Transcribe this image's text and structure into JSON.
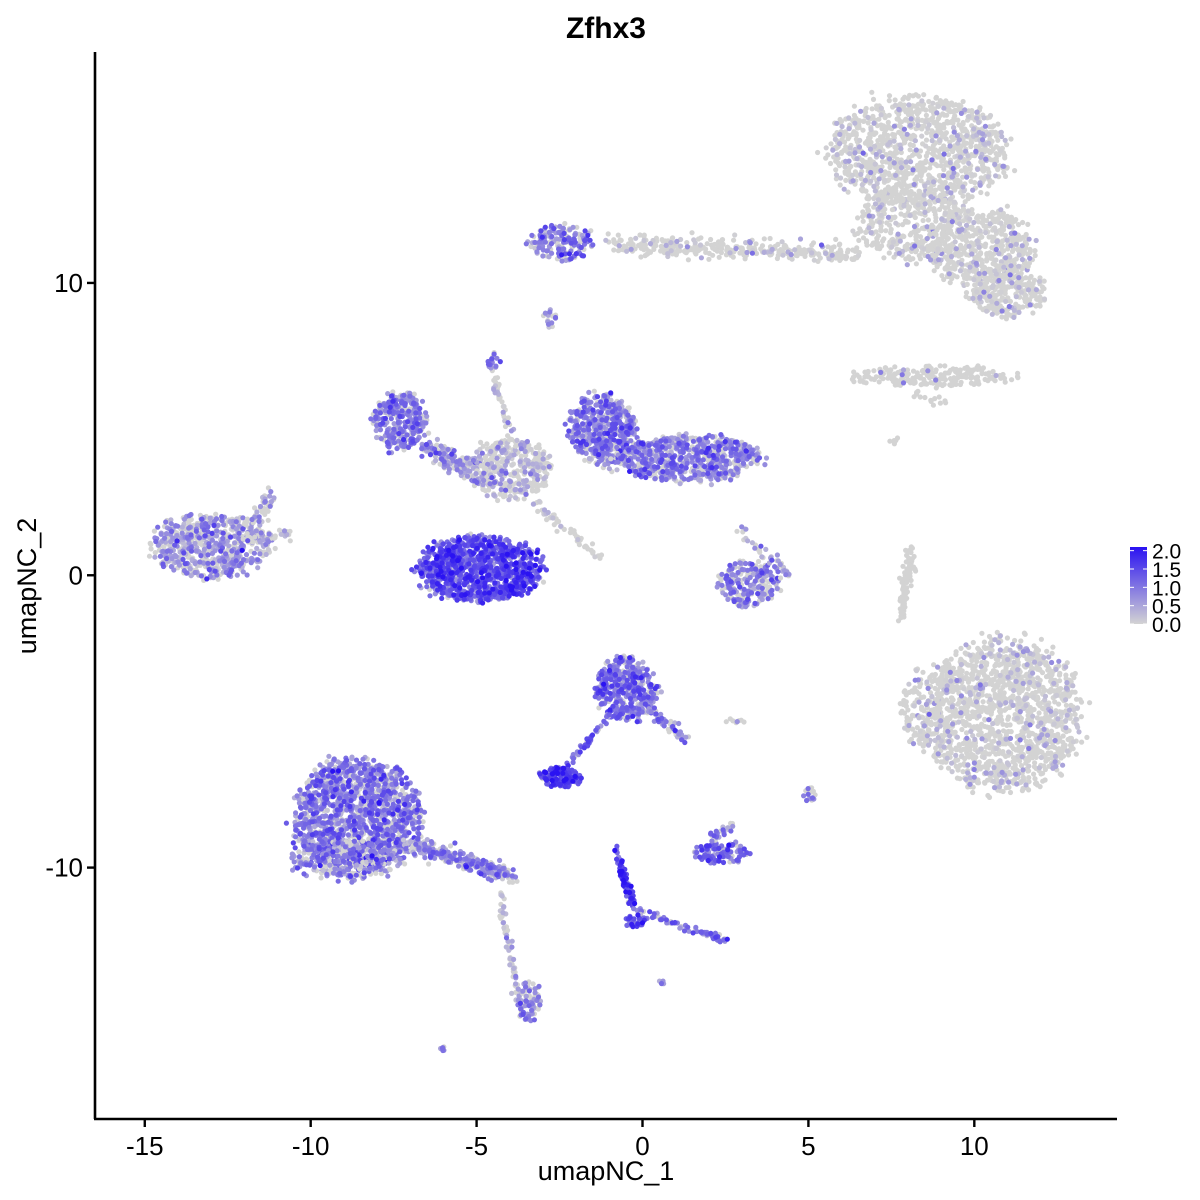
{
  "chart_data": {
    "type": "scatter",
    "title": "Zfhx3",
    "xlabel": "umapNC_1",
    "ylabel": "umapNC_2",
    "xlim": [
      -16.5,
      14.3
    ],
    "ylim": [
      -18.6,
      17.9
    ],
    "x_ticks": [
      -15,
      -10,
      -5,
      0,
      5,
      10
    ],
    "y_ticks": [
      -10,
      0,
      10
    ],
    "x_tick_labels": [
      "-15",
      "-10",
      "-5",
      "0",
      "5",
      "10"
    ],
    "y_tick_labels": [
      "-10",
      "0",
      "10"
    ],
    "grid": false,
    "point_colors": {
      "low": "#d3d3d3",
      "high": "#2a12f2"
    },
    "legend": {
      "position": "right",
      "labels": [
        "2.0",
        "1.5",
        "1.0",
        "0.5",
        "0.0"
      ],
      "values": [
        2.0,
        1.5,
        1.0,
        0.5,
        0.0
      ],
      "range": [
        0.0,
        2.1
      ]
    },
    "clusters": [
      {
        "name": "top-right-upper-lobe",
        "type": "ellipse",
        "cx": 8.3,
        "cy": 14.5,
        "rx": 2.7,
        "ry": 1.9,
        "n": 1100,
        "expr": 0.02
      },
      {
        "name": "top-right-stalk",
        "type": "ellipse",
        "cx": 8.1,
        "cy": 12.0,
        "rx": 1.7,
        "ry": 1.2,
        "n": 380,
        "expr": 0.02
      },
      {
        "name": "top-right-right-arm",
        "type": "ellipse",
        "cx": 10.2,
        "cy": 11.2,
        "rx": 1.6,
        "ry": 1.3,
        "n": 480,
        "expr": 0.03
      },
      {
        "name": "top-right-lower-arm",
        "type": "ellipse",
        "cx": 11.0,
        "cy": 9.7,
        "rx": 1.2,
        "ry": 0.9,
        "n": 280,
        "expr": 0.02
      },
      {
        "name": "top-bridge",
        "type": "line",
        "x1": -1.0,
        "y1": 11.3,
        "x2": 6.5,
        "y2": 11.0,
        "spread": 0.35,
        "n": 320,
        "expr": 0.03
      },
      {
        "name": "top-left-purple",
        "type": "ellipse",
        "cx": -2.4,
        "cy": 11.4,
        "rx": 1.0,
        "ry": 0.6,
        "n": 170,
        "expr": 0.9
      },
      {
        "name": "small-top-blip",
        "type": "ellipse",
        "cx": -2.8,
        "cy": 8.8,
        "rx": 0.2,
        "ry": 0.4,
        "n": 16,
        "expr": 0.6
      },
      {
        "name": "right-thin-cluster",
        "type": "ellipse",
        "cx": 8.8,
        "cy": 6.8,
        "rx": 2.4,
        "ry": 0.35,
        "n": 220,
        "expr": 0.0
      },
      {
        "name": "right-thin-tail",
        "type": "line",
        "x1": 8.2,
        "y1": 6.2,
        "x2": 9.2,
        "y2": 5.8,
        "spread": 0.15,
        "n": 14,
        "expr": 0.0
      },
      {
        "name": "left-cluster",
        "type": "ellipse",
        "cx": -13.0,
        "cy": 1.0,
        "rx": 1.8,
        "ry": 1.1,
        "n": 620,
        "expr": 0.65
      },
      {
        "name": "left-cluster-wing",
        "type": "line",
        "x1": -12.0,
        "y1": 1.6,
        "x2": -11.2,
        "y2": 2.7,
        "spread": 0.25,
        "n": 50,
        "expr": 0.5
      },
      {
        "name": "left-cluster-tip",
        "type": "line",
        "x1": -12.0,
        "y1": 1.2,
        "x2": -10.6,
        "y2": 1.4,
        "spread": 0.2,
        "n": 40,
        "expr": 0.5
      },
      {
        "name": "center-round-lobe",
        "type": "ellipse",
        "cx": -4.9,
        "cy": 0.2,
        "rx": 1.8,
        "ry": 1.1,
        "n": 1050,
        "expr": 1.35
      },
      {
        "name": "center-left-arm",
        "type": "ellipse",
        "cx": -7.3,
        "cy": 5.3,
        "rx": 0.8,
        "ry": 1.0,
        "n": 300,
        "expr": 0.9
      },
      {
        "name": "center-hub",
        "type": "ellipse",
        "cx": -4.0,
        "cy": 3.6,
        "rx": 1.3,
        "ry": 1.0,
        "n": 380,
        "expr": 0.35
      },
      {
        "name": "center-arm-connector",
        "type": "line",
        "x1": -6.6,
        "y1": 4.5,
        "x2": -4.6,
        "y2": 3.2,
        "spread": 0.35,
        "n": 170,
        "expr": 0.7
      },
      {
        "name": "center-spike",
        "type": "line",
        "x1": -4.6,
        "y1": 7.3,
        "x2": -3.9,
        "y2": 4.3,
        "spread": 0.12,
        "n": 40,
        "expr": 0.3
      },
      {
        "name": "center-right-arm",
        "type": "ellipse",
        "cx": -1.2,
        "cy": 5.0,
        "rx": 1.0,
        "ry": 1.2,
        "n": 520,
        "expr": 0.9
      },
      {
        "name": "center-right-body",
        "type": "ellipse",
        "cx": 1.4,
        "cy": 4.0,
        "rx": 2.1,
        "ry": 0.8,
        "n": 640,
        "expr": 0.85
      },
      {
        "name": "center-lower-branch",
        "type": "line",
        "x1": -3.3,
        "y1": 2.5,
        "x2": -1.2,
        "y2": 0.6,
        "spread": 0.15,
        "n": 55,
        "expr": 0.15
      },
      {
        "name": "center-top-blip",
        "type": "ellipse",
        "cx": -4.5,
        "cy": 7.3,
        "rx": 0.2,
        "ry": 0.3,
        "n": 18,
        "expr": 0.9
      },
      {
        "name": "mid-right-small",
        "type": "ellipse",
        "cx": 3.2,
        "cy": -0.3,
        "rx": 0.9,
        "ry": 0.8,
        "n": 210,
        "expr": 0.85
      },
      {
        "name": "mid-right-extension",
        "type": "line",
        "x1": 2.9,
        "y1": 1.6,
        "x2": 4.4,
        "y2": 0.0,
        "spread": 0.2,
        "n": 40,
        "expr": 0.6
      },
      {
        "name": "big-right-cluster",
        "type": "ellipse",
        "cx": 10.8,
        "cy": -4.8,
        "rx": 2.4,
        "ry": 2.6,
        "n": 1500,
        "expr": 0.03
      },
      {
        "name": "big-right-left-bulge",
        "type": "ellipse",
        "cx": 8.4,
        "cy": -4.6,
        "rx": 0.6,
        "ry": 1.3,
        "n": 110,
        "expr": 0.03
      },
      {
        "name": "vertical-thin-stalk",
        "type": "line",
        "x1": 8.1,
        "y1": 1.0,
        "x2": 7.8,
        "y2": -1.5,
        "spread": 0.15,
        "n": 90,
        "expr": 0.0
      },
      {
        "name": "bottom-left-main",
        "type": "ellipse",
        "cx": -8.6,
        "cy": -8.3,
        "rx": 1.9,
        "ry": 2.0,
        "n": 1500,
        "expr": 0.9
      },
      {
        "name": "bottom-left-lower",
        "type": "ellipse",
        "cx": -9.0,
        "cy": -9.7,
        "rx": 1.7,
        "ry": 0.7,
        "n": 260,
        "expr": 0.85
      },
      {
        "name": "bottom-left-tail",
        "type": "line",
        "x1": -7.0,
        "y1": -9.2,
        "x2": -4.0,
        "y2": -10.3,
        "spread": 0.3,
        "n": 280,
        "expr": 0.75
      },
      {
        "name": "bottom-left-strand",
        "type": "line",
        "x1": -4.3,
        "y1": -10.8,
        "x2": -3.7,
        "y2": -14.8,
        "spread": 0.12,
        "n": 70,
        "expr": 0.35
      },
      {
        "name": "bottom-left-blob",
        "type": "ellipse",
        "cx": -3.4,
        "cy": -14.6,
        "rx": 0.35,
        "ry": 0.7,
        "n": 80,
        "expr": 0.75
      },
      {
        "name": "center-lower-upper",
        "type": "ellipse",
        "cx": -0.5,
        "cy": -3.9,
        "rx": 0.9,
        "ry": 1.1,
        "n": 420,
        "expr": 1.0
      },
      {
        "name": "center-lower-tail",
        "type": "line",
        "x1": 0.3,
        "y1": -4.6,
        "x2": 1.2,
        "y2": -5.6,
        "spread": 0.25,
        "n": 50,
        "expr": 0.9
      },
      {
        "name": "center-lower-connector",
        "type": "line",
        "x1": -1.0,
        "y1": -4.8,
        "x2": -2.3,
        "y2": -6.6,
        "spread": 0.1,
        "n": 45,
        "expr": 1.1
      },
      {
        "name": "center-lower-blob",
        "type": "ellipse",
        "cx": -2.5,
        "cy": -6.9,
        "rx": 0.6,
        "ry": 0.35,
        "n": 130,
        "expr": 1.5
      },
      {
        "name": "blue-line-upper",
        "type": "line",
        "x1": -0.8,
        "y1": -9.3,
        "x2": -0.3,
        "y2": -11.3,
        "spread": 0.12,
        "n": 70,
        "expr": 1.6
      },
      {
        "name": "blue-line-lower",
        "type": "line",
        "x1": -0.3,
        "y1": -11.4,
        "x2": 2.5,
        "y2": -12.5,
        "spread": 0.12,
        "n": 70,
        "expr": 1.0
      },
      {
        "name": "blue-line-knot",
        "type": "ellipse",
        "cx": -0.2,
        "cy": -11.8,
        "rx": 0.3,
        "ry": 0.3,
        "n": 30,
        "expr": 1.3
      },
      {
        "name": "small-purple-right",
        "type": "ellipse",
        "cx": 2.4,
        "cy": -9.5,
        "rx": 0.8,
        "ry": 0.35,
        "n": 110,
        "expr": 1.1
      },
      {
        "name": "small-purple-right-top",
        "type": "line",
        "x1": 2.1,
        "y1": -9.0,
        "x2": 2.7,
        "y2": -8.5,
        "spread": 0.2,
        "n": 25,
        "expr": 0.9
      },
      {
        "name": "tiny-dot-right",
        "type": "ellipse",
        "cx": 5.0,
        "cy": -7.5,
        "rx": 0.2,
        "ry": 0.25,
        "n": 16,
        "expr": 0.6
      },
      {
        "name": "tiny-dot-bottom-left",
        "type": "ellipse",
        "cx": -6.0,
        "cy": -16.2,
        "rx": 0.12,
        "ry": 0.08,
        "n": 8,
        "expr": 1.0
      },
      {
        "name": "tiny-dot-bottom",
        "type": "ellipse",
        "cx": 0.6,
        "cy": -13.9,
        "rx": 0.1,
        "ry": 0.08,
        "n": 5,
        "expr": 1.0
      },
      {
        "name": "tiny-dot-mid",
        "type": "ellipse",
        "cx": 2.7,
        "cy": -5.0,
        "rx": 0.4,
        "ry": 0.1,
        "n": 8,
        "expr": 0.1
      },
      {
        "name": "tiny-dot-upper-right",
        "type": "ellipse",
        "cx": 7.7,
        "cy": 4.6,
        "rx": 0.3,
        "ry": 0.2,
        "n": 6,
        "expr": 0.0
      }
    ]
  }
}
